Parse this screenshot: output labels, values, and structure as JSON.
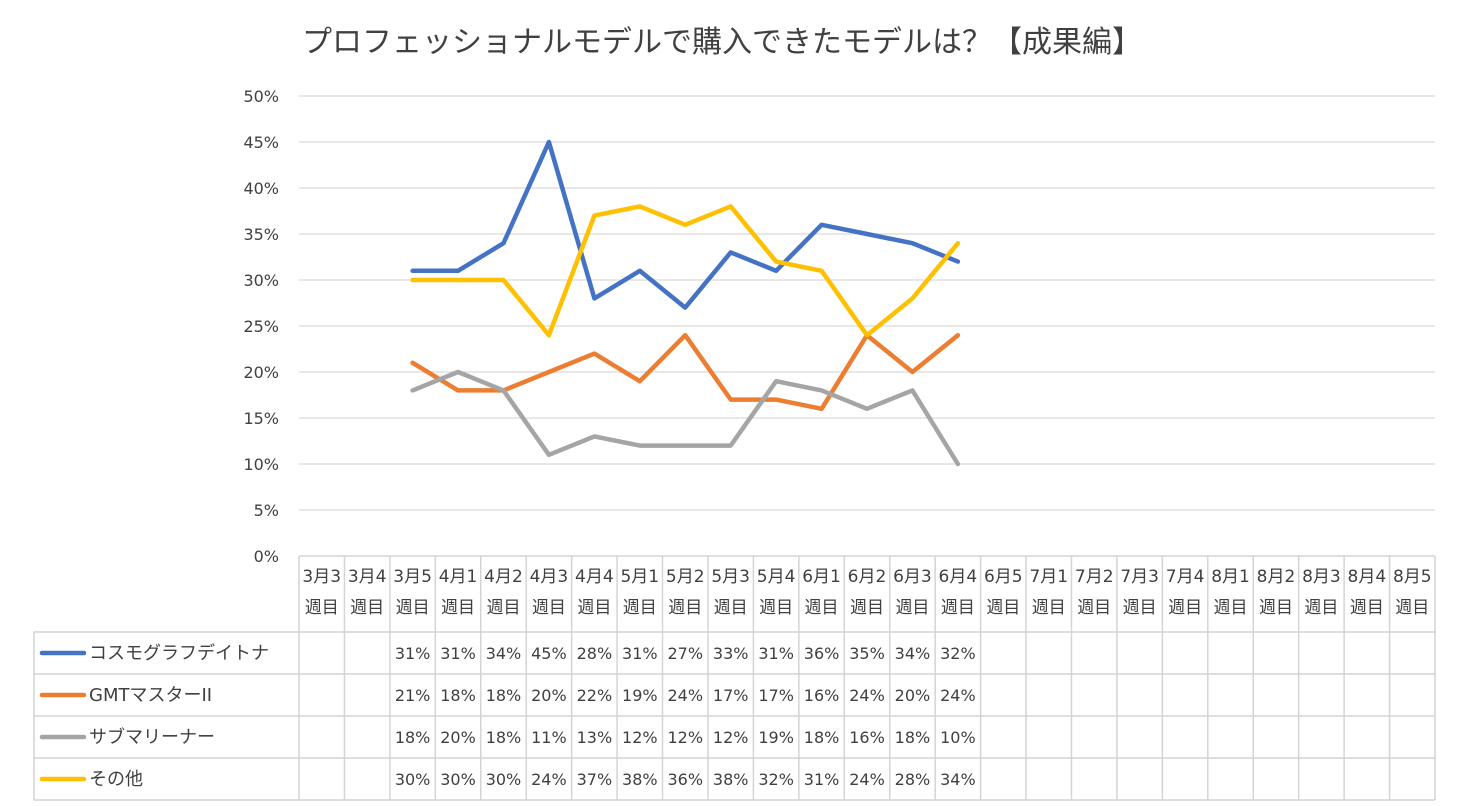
{
  "chart_data": {
    "type": "line",
    "title": "プロフェッショナルモデルで購入できたモデルは？【成果編】",
    "ylim": [
      0,
      50
    ],
    "yticks": [
      "0%",
      "5%",
      "10%",
      "15%",
      "20%",
      "25%",
      "30%",
      "35%",
      "40%",
      "45%",
      "50%"
    ],
    "categories": [
      {
        "top": "3月3",
        "bottom": "週目"
      },
      {
        "top": "3月4",
        "bottom": "週目"
      },
      {
        "top": "3月5",
        "bottom": "週目"
      },
      {
        "top": "4月1",
        "bottom": "週目"
      },
      {
        "top": "4月2",
        "bottom": "週目"
      },
      {
        "top": "4月3",
        "bottom": "週目"
      },
      {
        "top": "4月4",
        "bottom": "週目"
      },
      {
        "top": "5月1",
        "bottom": "週目"
      },
      {
        "top": "5月2",
        "bottom": "週目"
      },
      {
        "top": "5月3",
        "bottom": "週目"
      },
      {
        "top": "5月4",
        "bottom": "週目"
      },
      {
        "top": "6月1",
        "bottom": "週目"
      },
      {
        "top": "6月2",
        "bottom": "週目"
      },
      {
        "top": "6月3",
        "bottom": "週目"
      },
      {
        "top": "6月4",
        "bottom": "週目"
      },
      {
        "top": "6月5",
        "bottom": "週目"
      },
      {
        "top": "7月1",
        "bottom": "週目"
      },
      {
        "top": "7月2",
        "bottom": "週目"
      },
      {
        "top": "7月3",
        "bottom": "週目"
      },
      {
        "top": "7月4",
        "bottom": "週目"
      },
      {
        "top": "8月1",
        "bottom": "週目"
      },
      {
        "top": "8月2",
        "bottom": "週目"
      },
      {
        "top": "8月3",
        "bottom": "週目"
      },
      {
        "top": "8月4",
        "bottom": "週目"
      },
      {
        "top": "8月5",
        "bottom": "週目"
      }
    ],
    "series": [
      {
        "name": "コスモグラフデイトナ",
        "color": "#4472C4",
        "values": [
          null,
          null,
          31,
          31,
          34,
          45,
          28,
          31,
          27,
          33,
          31,
          36,
          35,
          34,
          32,
          null,
          null,
          null,
          null,
          null,
          null,
          null,
          null,
          null,
          null
        ]
      },
      {
        "name": "GMTマスターII",
        "color": "#ED7D31",
        "values": [
          null,
          null,
          21,
          18,
          18,
          20,
          22,
          19,
          24,
          17,
          17,
          16,
          24,
          20,
          24,
          null,
          null,
          null,
          null,
          null,
          null,
          null,
          null,
          null,
          null
        ]
      },
      {
        "name": "サブマリーナー",
        "color": "#A5A5A5",
        "values": [
          null,
          null,
          18,
          20,
          18,
          11,
          13,
          12,
          12,
          12,
          19,
          18,
          16,
          18,
          10,
          null,
          null,
          null,
          null,
          null,
          null,
          null,
          null,
          null,
          null
        ]
      },
      {
        "name": "その他",
        "color": "#FFC000",
        "values": [
          null,
          null,
          30,
          30,
          30,
          24,
          37,
          38,
          36,
          38,
          32,
          31,
          24,
          28,
          34,
          null,
          null,
          null,
          null,
          null,
          null,
          null,
          null,
          null,
          null
        ]
      }
    ],
    "data_table": true,
    "grid": true
  }
}
